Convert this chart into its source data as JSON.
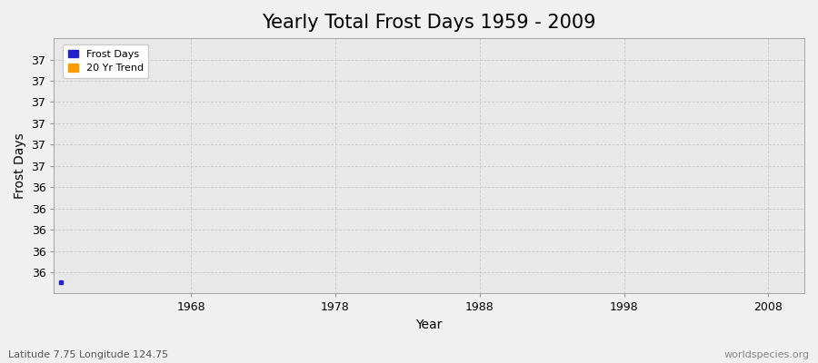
{
  "title": "Yearly Total Frost Days 1959 - 2009",
  "xlabel": "Year",
  "ylabel": "Frost Days",
  "fig_bg_color": "#f0f0f0",
  "plot_bg_color": "#e8e8e8",
  "grid_color": "#c8c8c8",
  "frost_days_color": "#2222cc",
  "trend_color": "#ff9900",
  "xlim": [
    1958.5,
    2010.5
  ],
  "ylim_min": 35.85,
  "ylim_max": 37.42,
  "n_yticks": 11,
  "ytick_labels": [
    "36",
    "36",
    "36",
    "36",
    "36",
    "37",
    "37",
    "37",
    "37",
    "37",
    "37"
  ],
  "xticks": [
    1968,
    1978,
    1988,
    1998,
    2008
  ],
  "data_x": [
    1959
  ],
  "data_y": [
    35.92
  ],
  "legend_labels": [
    "Frost Days",
    "20 Yr Trend"
  ],
  "legend_colors": [
    "#2222cc",
    "#ff9900"
  ],
  "annotation_left": "Latitude 7.75 Longitude 124.75",
  "annotation_right": "worldspecies.org",
  "title_fontsize": 15,
  "axis_label_fontsize": 10,
  "tick_fontsize": 9,
  "annotation_fontsize": 8
}
